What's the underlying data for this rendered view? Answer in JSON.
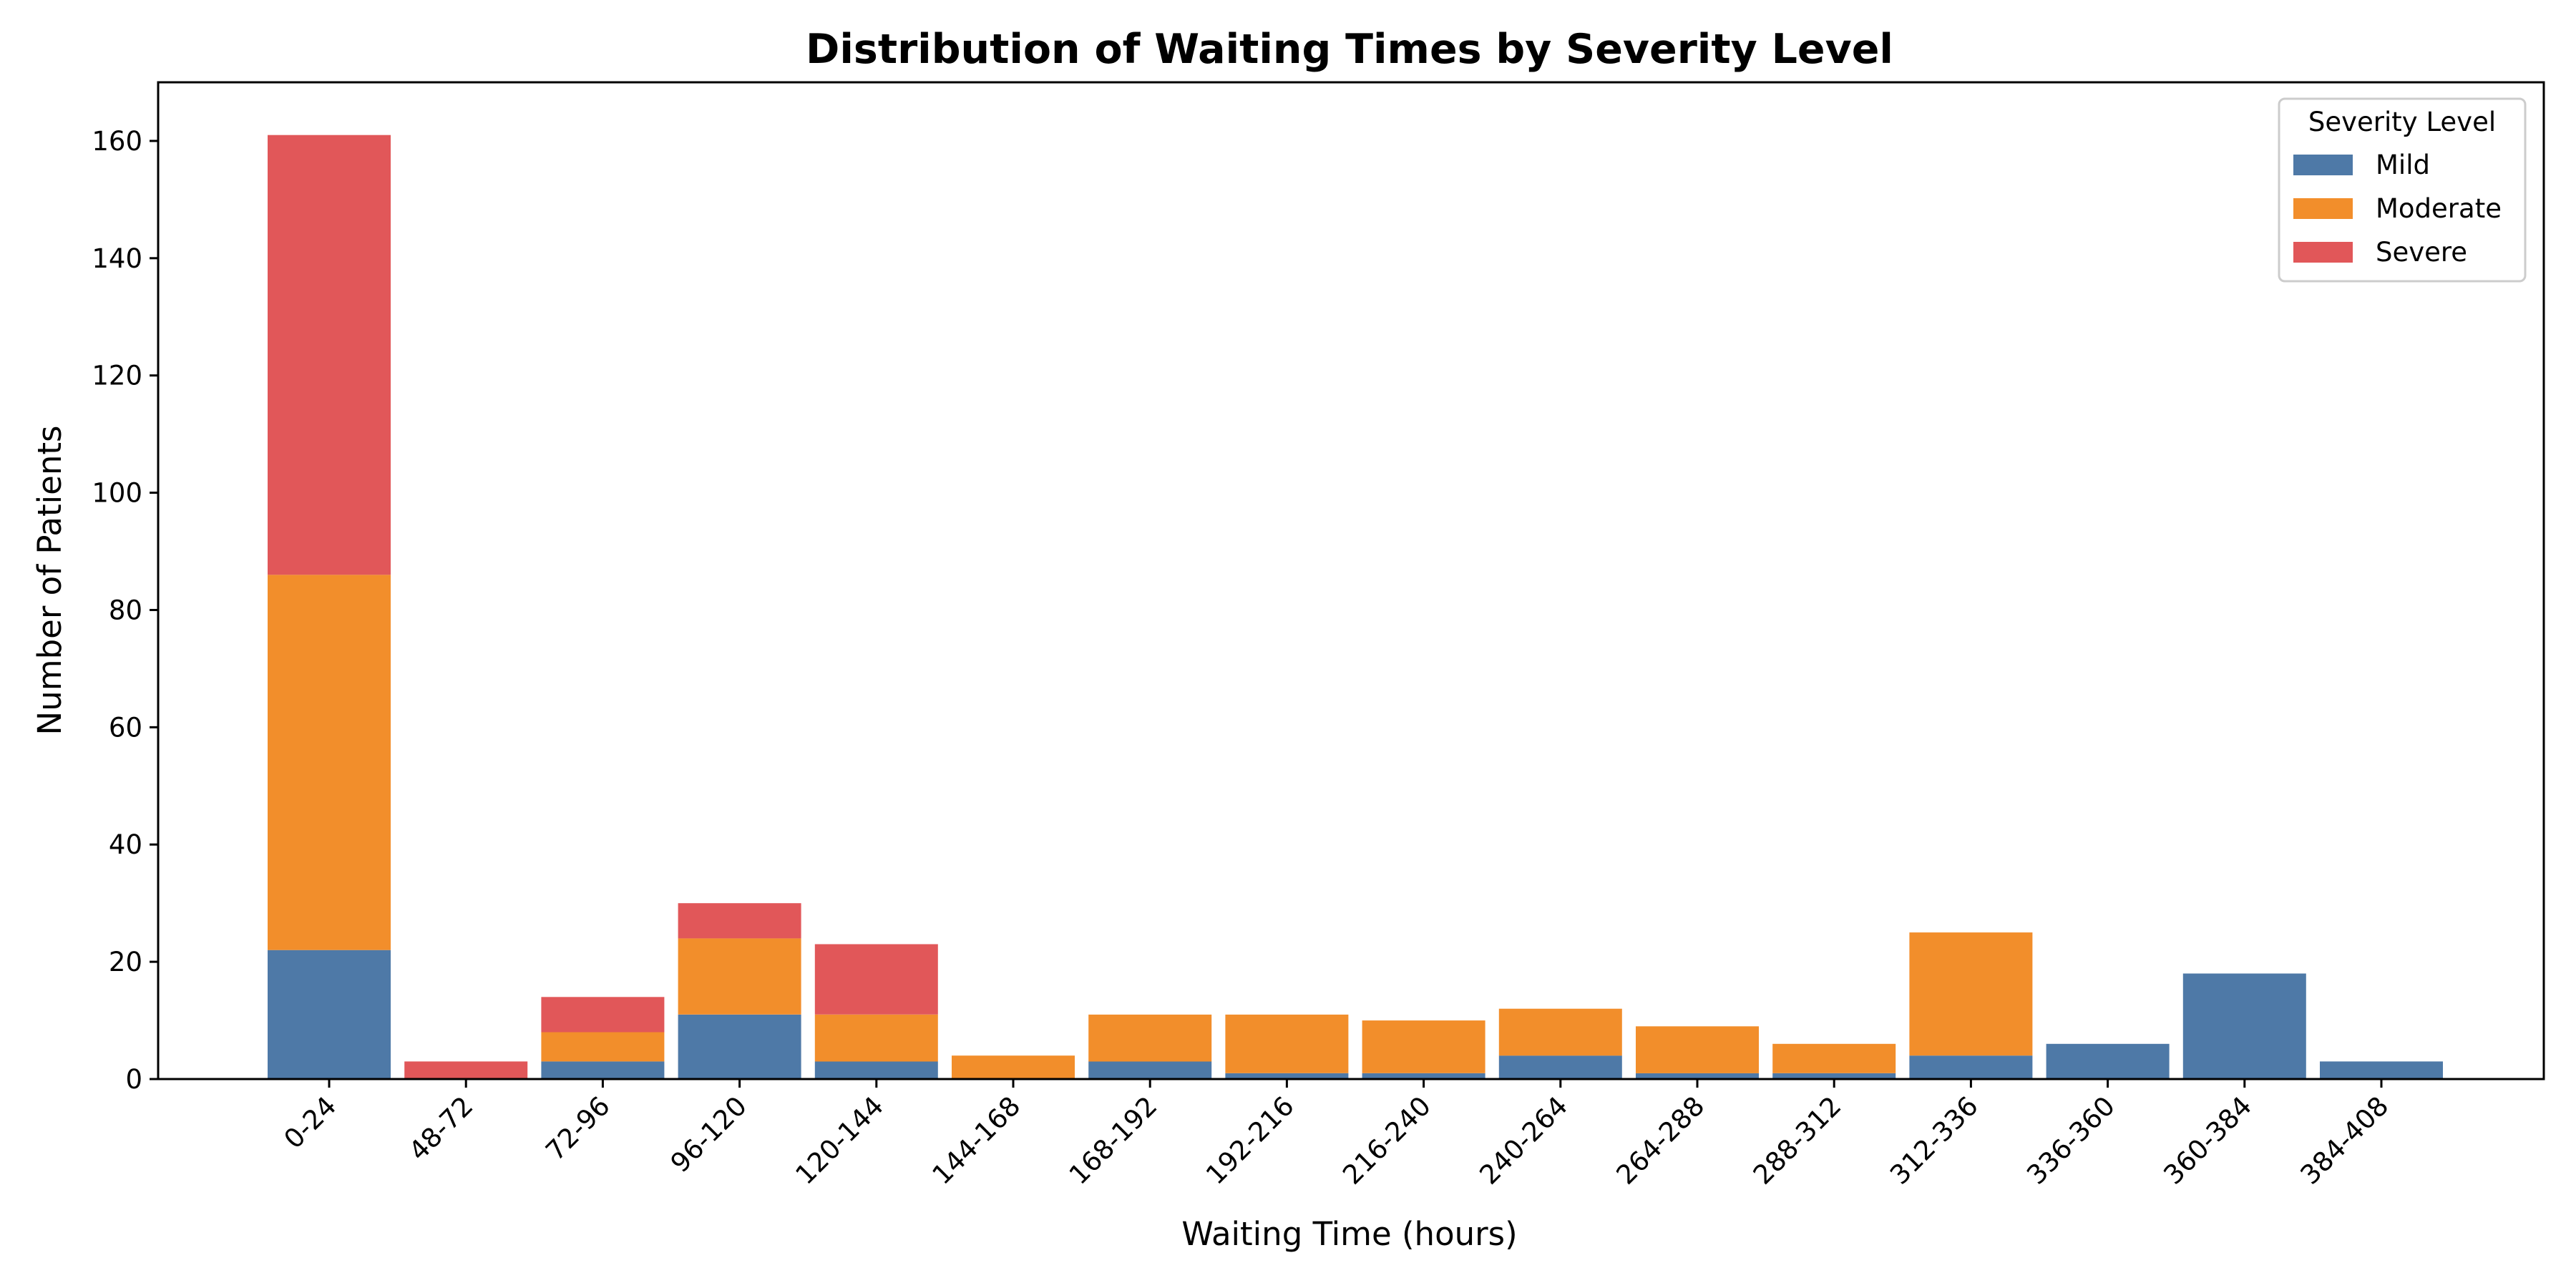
{
  "chart_data": {
    "type": "bar",
    "stacked": true,
    "title": "Distribution of Waiting Times by Severity Level",
    "xlabel": "Waiting Time (hours)",
    "ylabel": "Number of Patients",
    "ylim": [
      0,
      170
    ],
    "yticks": [
      0,
      20,
      40,
      60,
      80,
      100,
      120,
      140,
      160
    ],
    "grid": false,
    "legend": {
      "title": "Severity Level",
      "placement": "top-right"
    },
    "categories": [
      "0-24",
      "48-72",
      "72-96",
      "96-120",
      "120-144",
      "144-168",
      "168-192",
      "192-216",
      "216-240",
      "240-264",
      "264-288",
      "288-312",
      "312-336",
      "336-360",
      "360-384",
      "384-408"
    ],
    "series": [
      {
        "name": "Mild",
        "color": "#4e79a7",
        "values": [
          22,
          0,
          3,
          11,
          3,
          0,
          3,
          1,
          1,
          4,
          1,
          1,
          4,
          6,
          18,
          3
        ]
      },
      {
        "name": "Moderate",
        "color": "#f28e2b",
        "values": [
          64,
          0,
          5,
          13,
          8,
          4,
          8,
          10,
          9,
          8,
          8,
          5,
          21,
          0,
          0,
          0
        ]
      },
      {
        "name": "Severe",
        "color": "#e15759",
        "values": [
          75,
          3,
          6,
          6,
          12,
          0,
          0,
          0,
          0,
          0,
          0,
          0,
          0,
          0,
          0,
          0
        ]
      }
    ]
  }
}
